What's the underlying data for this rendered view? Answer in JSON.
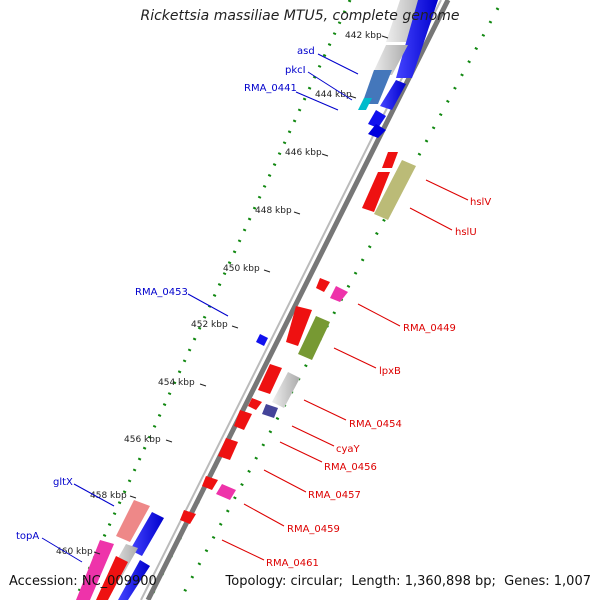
{
  "title": "Rickettsia massiliae MTU5, complete genome",
  "footer": {
    "accession_label": "Accession:",
    "accession_value": "NC_009900",
    "topology_label": "Topology:",
    "topology_value": "circular",
    "length_label": "Length:",
    "length_value": "1,360,898 bp",
    "genes_label": "Genes:",
    "genes_value": "1,007"
  },
  "ticks": [
    "442 kbp",
    "444 kbp",
    "446 kbp",
    "448 kbp",
    "450 kbp",
    "452 kbp",
    "454 kbp",
    "456 kbp",
    "458 kbp",
    "460 kbp"
  ],
  "colors": {
    "label_left": "#0000cc",
    "label_right": "#dd0000",
    "backbone": "#888888",
    "ticks": "#118811"
  },
  "left_labels": [
    {
      "name": "asd"
    },
    {
      "name": "pkcI"
    },
    {
      "name": "RMA_0441"
    },
    {
      "name": "RMA_0453"
    },
    {
      "name": "gltX"
    },
    {
      "name": "topA"
    }
  ],
  "right_labels": [
    {
      "name": "hslV"
    },
    {
      "name": "hslU"
    },
    {
      "name": "RMA_0449"
    },
    {
      "name": "lpxB"
    },
    {
      "name": "RMA_0454"
    },
    {
      "name": "cyaY"
    },
    {
      "name": "RMA_0456"
    },
    {
      "name": "RMA_0457"
    },
    {
      "name": "RMA_0459"
    },
    {
      "name": "RMA_0461"
    }
  ]
}
